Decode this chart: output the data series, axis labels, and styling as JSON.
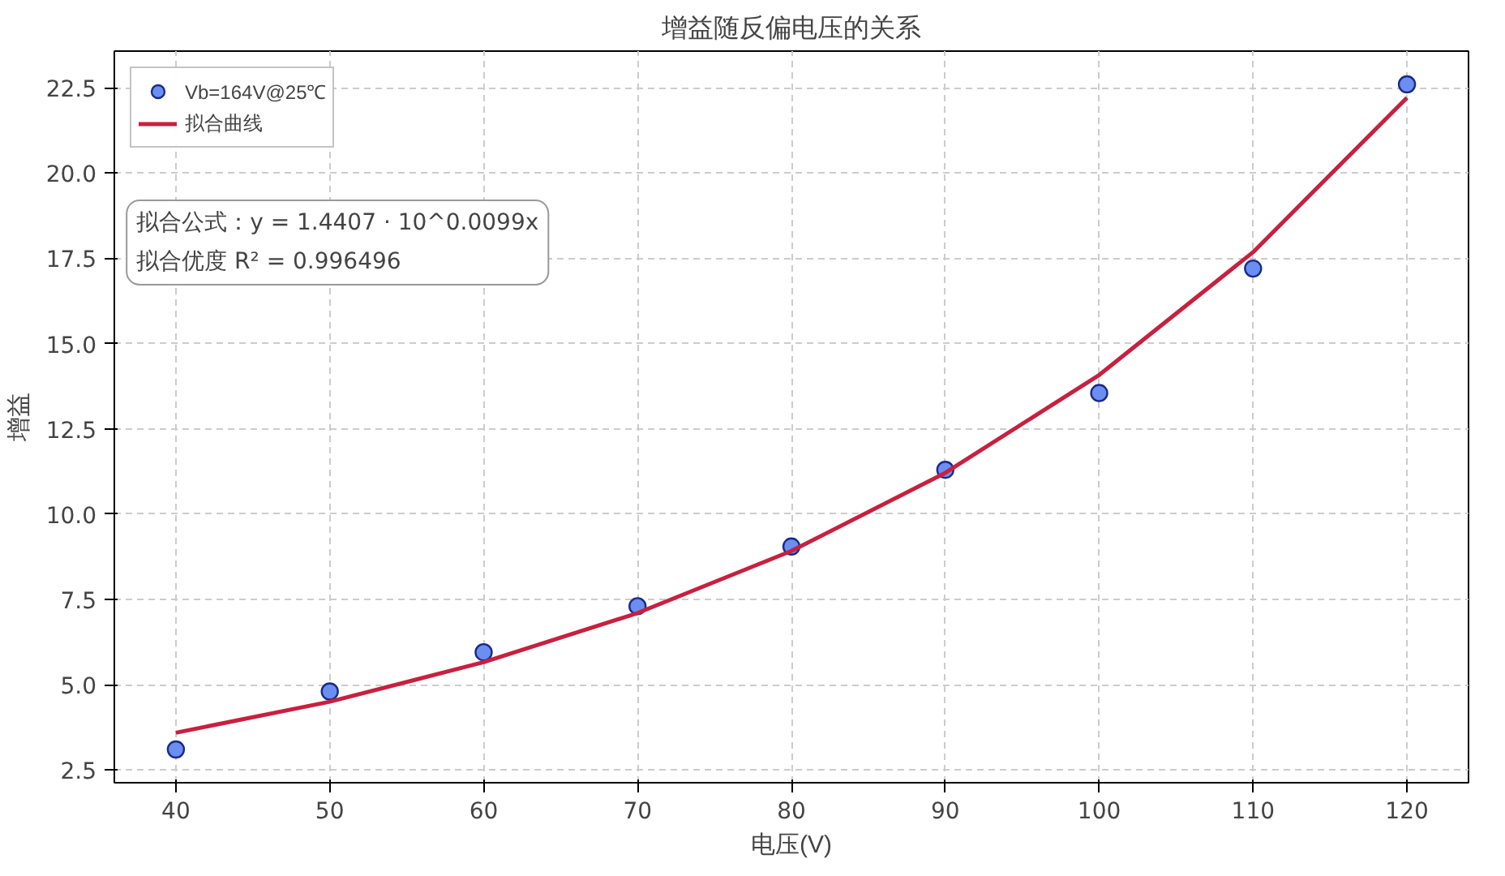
{
  "chart_data": {
    "type": "scatter",
    "title": "增益随反偏电压的关系",
    "xlabel": "电压(V)",
    "ylabel": "增益",
    "x": [
      40,
      50,
      60,
      70,
      80,
      90,
      100,
      110,
      120
    ],
    "series": [
      {
        "name": "Vb=164V@25℃",
        "marker": "circle",
        "color": "#6b8ff0",
        "values": [
          3.1,
          4.8,
          5.95,
          7.3,
          9.05,
          11.3,
          13.55,
          17.2,
          22.6
        ]
      },
      {
        "name": "拟合曲线",
        "type": "line",
        "marker": "none",
        "color": "#c8203f",
        "values": [
          3.59,
          4.5,
          5.66,
          7.1,
          8.92,
          11.21,
          14.08,
          17.68,
          22.21
        ]
      }
    ],
    "annotations": [
      "拟合公式：y = 1.4407 · 10^0.0099x",
      "拟合优度 R² = 0.996496"
    ],
    "xlim": [
      36,
      124
    ],
    "xticks": [
      40,
      50,
      60,
      70,
      80,
      90,
      100,
      110,
      120
    ],
    "ylim": [
      2.125,
      23.575
    ],
    "yticks": [
      2.5,
      {
        "value": 5,
        "label": "5.0"
      },
      7.5,
      {
        "value": 10,
        "label": "10.0"
      },
      12.5,
      {
        "value": 15,
        "label": "15.0"
      },
      17.5,
      {
        "value": 20,
        "label": "20.0"
      },
      22.5
    ],
    "grid": true,
    "legend": "top left",
    "line_style": "solid"
  }
}
